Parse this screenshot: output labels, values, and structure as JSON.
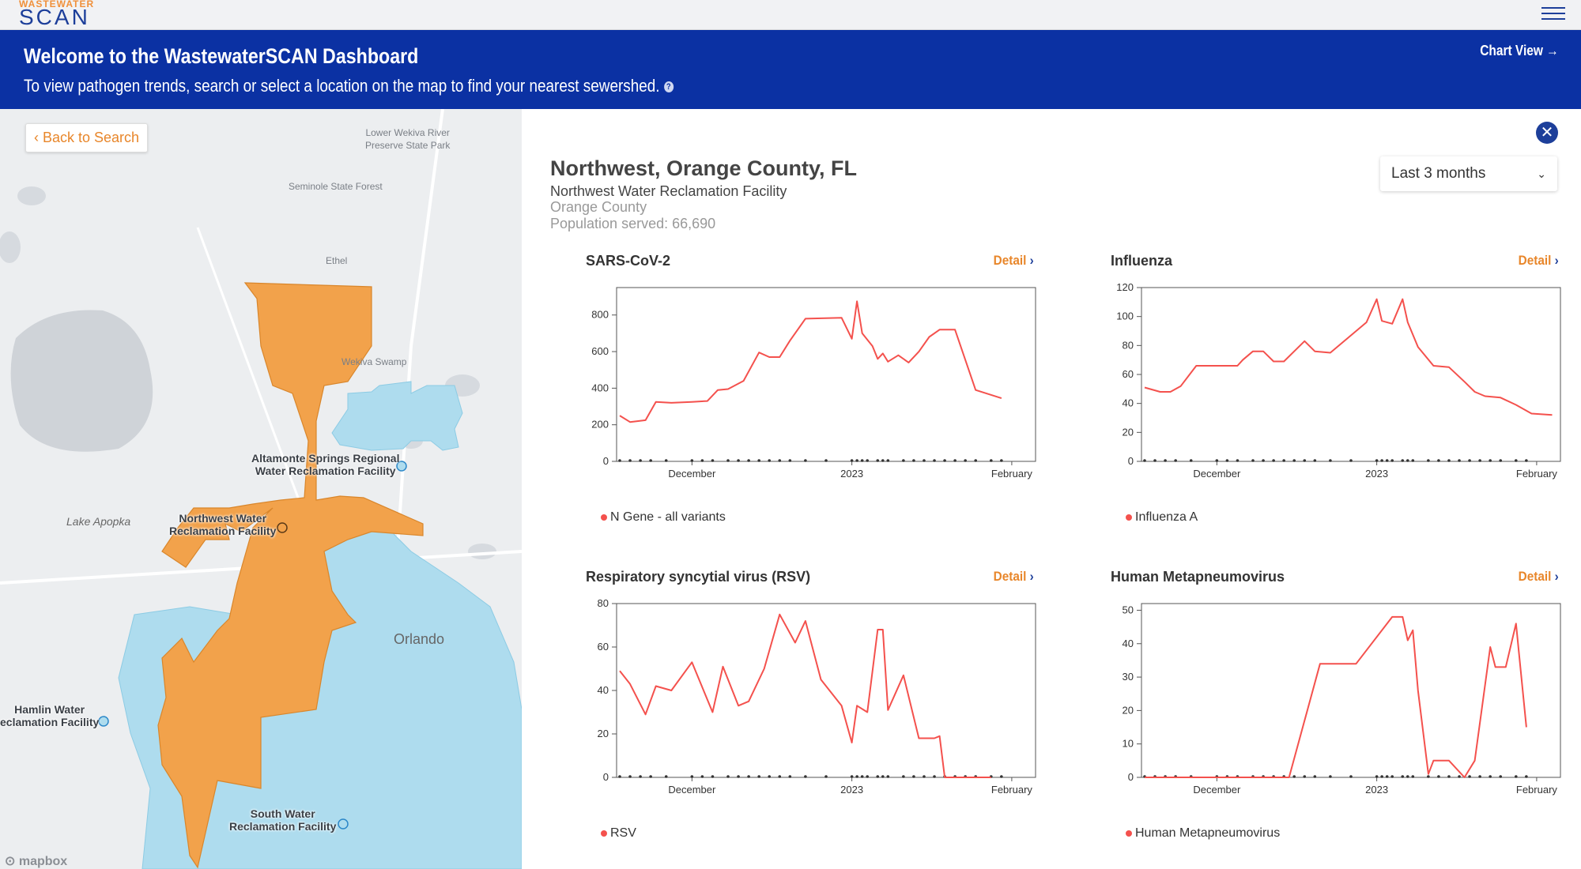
{
  "logo": {
    "top_text": "WASTEWATER",
    "main_text": "SCAN"
  },
  "banner": {
    "title": "Welcome to the WastewaterSCAN Dashboard",
    "subtitle": "To view pathogen trends, search or select a location on the map to find your nearest sewershed.",
    "chart_view_label": "Chart View →"
  },
  "map": {
    "back_label": "Back to Search",
    "labels": {
      "lower_wekiva": "Lower Wekiva River\nPreserve State Park",
      "seminole": "Seminole State Forest",
      "ethel": "Ethel",
      "wekiva_swamp": "Wekiva Swamp",
      "altamonte": "Altamonte Springs Regional\nWater Reclamation Facility",
      "northwest": "Northwest Water\nReclamation Facility",
      "lake_apopka": "Lake Apopka",
      "orlando": "Orlando",
      "hamlin": "Hamlin Water\neclamation Facility",
      "south": "South Water\nReclamation Facility"
    },
    "attribution": "mapbox"
  },
  "location": {
    "title": "Northwest, Orange County, FL",
    "facility": "Northwest Water Reclamation Facility",
    "county": "Orange County",
    "population": "Population served: 66,690"
  },
  "range_select": {
    "value": "Last 3 months"
  },
  "detail_label": "Detail",
  "line_color": "#f4514d",
  "chart_data": [
    {
      "type": "line",
      "title": "SARS-CoV-2",
      "legend": "N Gene - all variants",
      "ylim": [
        0,
        950
      ],
      "yticks": [
        0,
        200,
        400,
        600,
        800
      ],
      "xticks": [
        {
          "label": "December",
          "x": 14
        },
        {
          "label": "2023",
          "x": 45
        },
        {
          "label": "February",
          "x": 76
        }
      ],
      "x": [
        0,
        2,
        5,
        7,
        10,
        14,
        17,
        19,
        21,
        24,
        27,
        29,
        31,
        33,
        36,
        43,
        45,
        46,
        47,
        49,
        50,
        51,
        52,
        54,
        56,
        58,
        60,
        62,
        65,
        69
      ],
      "y": [
        250,
        215,
        225,
        325,
        320,
        325,
        330,
        390,
        395,
        440,
        595,
        570,
        570,
        660,
        780,
        785,
        670,
        875,
        700,
        630,
        560,
        590,
        545,
        580,
        540,
        600,
        680,
        720,
        720,
        390
      ],
      "end": [
        74,
        345
      ]
    },
    {
      "type": "line",
      "title": "Influenza",
      "legend": "Influenza A",
      "ylim": [
        0,
        120
      ],
      "yticks": [
        0,
        20,
        40,
        60,
        80,
        100,
        120
      ],
      "xticks": [
        {
          "label": "December",
          "x": 14
        },
        {
          "label": "2023",
          "x": 45
        },
        {
          "label": "February",
          "x": 76
        }
      ],
      "x": [
        0,
        3,
        5,
        7,
        10,
        14,
        18,
        19,
        21,
        23,
        25,
        27,
        29,
        31,
        33,
        36,
        43,
        45,
        46,
        48,
        50,
        51,
        53,
        56,
        59,
        62,
        64,
        66,
        69,
        72,
        75,
        79
      ],
      "y": [
        51,
        48,
        48,
        52,
        66,
        66,
        66,
        70,
        76,
        76,
        69,
        69,
        76,
        83,
        76,
        75,
        96,
        112,
        97,
        95,
        112,
        96,
        79,
        66,
        65,
        55,
        48,
        45,
        44,
        39,
        33,
        32
      ],
      "end": null
    },
    {
      "type": "line",
      "title": "Respiratory syncytial virus (RSV)",
      "legend": "RSV",
      "ylim": [
        0,
        80
      ],
      "yticks": [
        0,
        20,
        40,
        60,
        80
      ],
      "xticks": [
        {
          "label": "December",
          "x": 14
        },
        {
          "label": "2023",
          "x": 45
        },
        {
          "label": "February",
          "x": 76
        }
      ],
      "x": [
        0,
        2,
        5,
        7,
        10,
        14,
        18,
        20,
        23,
        25,
        28,
        31,
        34,
        36,
        39,
        43,
        45,
        46,
        48,
        50,
        51,
        52,
        55,
        58,
        61,
        62,
        63,
        66,
        69,
        72
      ],
      "y": [
        49,
        43,
        29,
        42,
        40,
        53,
        30,
        51,
        33,
        35,
        50,
        75,
        62,
        72,
        45,
        33,
        16,
        33,
        30,
        68,
        68,
        31,
        47,
        18,
        18,
        19,
        0,
        0,
        0,
        0
      ],
      "end": null
    },
    {
      "type": "line",
      "title": "Human Metapneumovirus",
      "legend": "Human Metapneumovirus",
      "ylim": [
        0,
        52
      ],
      "yticks": [
        0,
        10,
        20,
        30,
        40,
        50
      ],
      "xticks": [
        {
          "label": "December",
          "x": 14
        },
        {
          "label": "2023",
          "x": 45
        },
        {
          "label": "February",
          "x": 76
        }
      ],
      "x": [
        0,
        28,
        34,
        41,
        48,
        50,
        51,
        52,
        53,
        55,
        56,
        59,
        62,
        64,
        67,
        68,
        70,
        72,
        74
      ],
      "y": [
        0,
        0,
        34,
        34,
        48,
        48,
        41,
        44,
        26,
        1,
        5,
        5,
        0,
        5,
        39,
        33,
        33,
        46,
        15
      ],
      "end": null
    }
  ]
}
